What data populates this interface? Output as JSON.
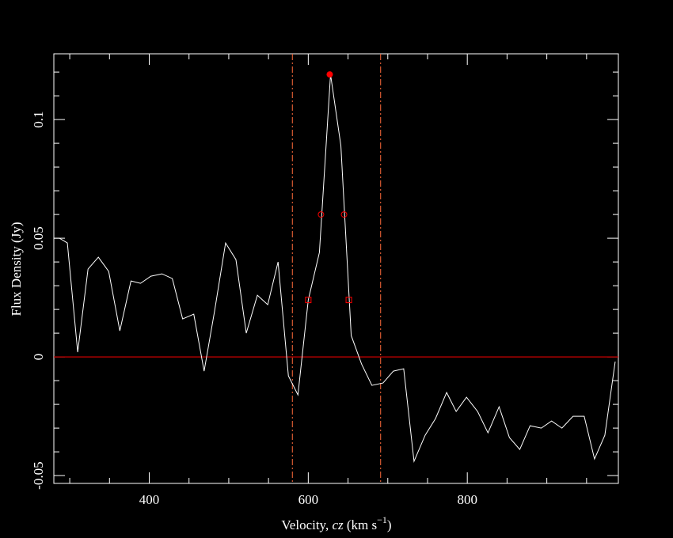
{
  "chart_data": {
    "type": "line",
    "xlabel": {
      "prefix": "Velocity, ",
      "variable": "cz",
      "unit": " (km s",
      "exponent": "−1",
      "suffix": ")"
    },
    "ylabel": "Flux Density (Jy)",
    "xlim": [
      280,
      990
    ],
    "ylim": [
      -0.0533,
      0.1277
    ],
    "xticks": [
      400,
      600,
      800
    ],
    "yticks": [
      -0.05,
      0,
      0.05,
      0.1
    ],
    "xminor": [
      300,
      350,
      450,
      500,
      550,
      650,
      700,
      750,
      850,
      900,
      950
    ],
    "yminor": [
      -0.04,
      -0.03,
      -0.02,
      -0.01,
      0.01,
      0.02,
      0.03,
      0.04,
      0.06,
      0.07,
      0.08,
      0.09,
      0.11,
      0.12
    ],
    "series": [
      {
        "color": "#ffffff",
        "x": [
          280,
          287,
          297,
          310,
          323,
          336,
          349,
          363,
          377,
          389,
          402,
          416,
          429,
          442,
          456,
          469,
          482,
          496,
          509,
          522,
          536,
          549,
          562,
          575,
          587,
          600,
          614,
          628,
          641,
          654,
          667,
          680,
          694,
          707,
          720,
          733,
          747,
          760,
          774,
          786,
          799,
          813,
          826,
          840,
          853,
          866,
          879,
          893,
          906,
          919,
          933,
          947,
          960,
          973,
          986
        ],
        "values": [
          0.05,
          0.05,
          0.048,
          0.002,
          0.037,
          0.042,
          0.036,
          0.011,
          0.032,
          0.031,
          0.034,
          0.035,
          0.033,
          0.016,
          0.018,
          -0.006,
          0.019,
          0.048,
          0.041,
          0.01,
          0.026,
          0.022,
          0.04,
          -0.008,
          -0.016,
          0.024,
          0.044,
          0.119,
          0.089,
          0.009,
          -0.003,
          -0.012,
          -0.011,
          -0.006,
          -0.005,
          -0.044,
          -0.033,
          -0.026,
          -0.015,
          -0.023,
          -0.017,
          -0.023,
          -0.032,
          -0.021,
          -0.034,
          -0.039,
          -0.029,
          -0.03,
          -0.027,
          -0.03,
          -0.025,
          -0.025,
          -0.043,
          -0.033,
          -0.002
        ]
      }
    ],
    "peak": {
      "x": 627,
      "y": 0.119,
      "color": "#ff0000"
    },
    "w50_points": {
      "x": [
        616,
        645
      ],
      "y": [
        0.06,
        0.06
      ],
      "color": "#ff0000"
    },
    "w20_points": {
      "x": [
        600,
        651
      ],
      "y": [
        0.024,
        0.024
      ],
      "color": "#ff0000"
    },
    "vlines": {
      "x": [
        580,
        691
      ],
      "color": "#ff6a3a"
    },
    "hline": {
      "y": 0,
      "color": "#d00000"
    }
  }
}
